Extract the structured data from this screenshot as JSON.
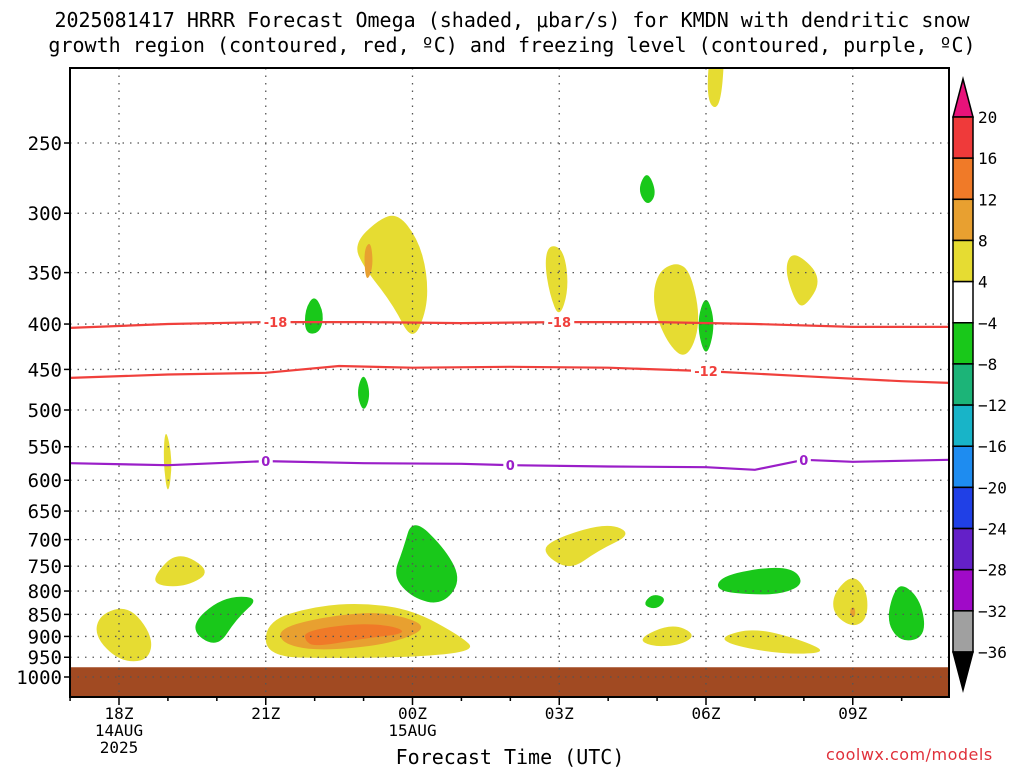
{
  "title_line1": "2025081417 HRRR Forecast Omega (shaded, μbar/s) for KMDN with dendritic snow",
  "title_line2": "growth region (contoured, red, ºC) and freezing level (contoured, purple, ºC)",
  "credit": "coolwx.com/models",
  "colors": {
    "dgz": "#f0403c",
    "freezing": "#9a1ec8",
    "ground": "#a14a22",
    "grid": "#808080"
  },
  "chart_data": {
    "type": "heatmap",
    "title": "2025081417 HRRR Forecast Omega (shaded, μbar/s) for KMDN with dendritic snow growth region (contoured, red, ºC) and freezing level (contoured, purple, ºC)",
    "xlabel": "Forecast Time (UTC)",
    "ylabel": "",
    "x_range_hours": [
      -1,
      17
    ],
    "y_range_hpa": [
      200,
      1030
    ],
    "y_scale": "log-pressure",
    "grid": true,
    "y_ticks": [
      250,
      300,
      350,
      400,
      450,
      500,
      550,
      600,
      650,
      700,
      750,
      800,
      850,
      900,
      950,
      1000
    ],
    "x_ticks": [
      {
        "h": 0,
        "label": "18Z",
        "sub1": "14AUG",
        "sub2": "2025"
      },
      {
        "h": 3,
        "label": "21Z",
        "sub1": "",
        "sub2": ""
      },
      {
        "h": 6,
        "label": "00Z",
        "sub1": "15AUG",
        "sub2": ""
      },
      {
        "h": 9,
        "label": "03Z",
        "sub1": "",
        "sub2": ""
      },
      {
        "h": 12,
        "label": "06Z",
        "sub1": "",
        "sub2": ""
      },
      {
        "h": 15,
        "label": "09Z",
        "sub1": "",
        "sub2": ""
      }
    ],
    "colorbar": {
      "labels": [
        "20",
        "16",
        "12",
        "8",
        "4",
        "−4",
        "−8",
        "−12",
        "−16",
        "−20",
        "−24",
        "−28",
        "−32",
        "−36"
      ],
      "colors": [
        "#e8127a",
        "#ef3a3a",
        "#f07a28",
        "#e8a030",
        "#e6dc32",
        "#ffffff",
        "#19c81a",
        "#1cb478",
        "#18b4c8",
        "#1e8cf0",
        "#2040e6",
        "#6420c8",
        "#a00ac8",
        "#a0a0a0",
        "#000000"
      ]
    },
    "contours": [
      {
        "name": "-18",
        "color": "#f0403c",
        "label_h": [
          3.2,
          9.0
        ],
        "points": [
          [
            -1,
            404
          ],
          [
            1,
            400
          ],
          [
            3,
            398
          ],
          [
            5,
            398
          ],
          [
            7,
            399
          ],
          [
            9,
            398
          ],
          [
            11,
            398
          ],
          [
            13,
            400
          ],
          [
            15,
            403
          ],
          [
            17,
            403
          ]
        ]
      },
      {
        "name": "-12",
        "color": "#f0403c",
        "label_h": [
          12.0
        ],
        "points": [
          [
            -1,
            460
          ],
          [
            1,
            456
          ],
          [
            3,
            454
          ],
          [
            4.5,
            446
          ],
          [
            6,
            448
          ],
          [
            8,
            447
          ],
          [
            10,
            448
          ],
          [
            12,
            452
          ],
          [
            14,
            458
          ],
          [
            16,
            464
          ],
          [
            17,
            466
          ]
        ]
      },
      {
        "name": "0",
        "color": "#9a1ec8",
        "label_h": [
          3.0,
          8.0,
          14.0
        ],
        "points": [
          [
            -1,
            574
          ],
          [
            1,
            577
          ],
          [
            3,
            571
          ],
          [
            5,
            574
          ],
          [
            7,
            575
          ],
          [
            8,
            577
          ],
          [
            10,
            579
          ],
          [
            12,
            580
          ],
          [
            13,
            584
          ],
          [
            14,
            569
          ],
          [
            15,
            572
          ],
          [
            17,
            569
          ]
        ]
      }
    ],
    "omega_regions": [
      {
        "class": "4 to 8",
        "color": "#e6dc32",
        "points": [
          [
            5.3,
            305
          ],
          [
            5.7,
            300
          ],
          [
            6.1,
            320
          ],
          [
            6.3,
            350
          ],
          [
            6.3,
            385
          ],
          [
            6.0,
            420
          ],
          [
            5.6,
            380
          ],
          [
            5.0,
            345
          ],
          [
            4.8,
            325
          ]
        ]
      },
      {
        "class": "8 to 12",
        "color": "#e8a030",
        "points": [
          [
            5.0,
            330
          ],
          [
            5.15,
            322
          ],
          [
            5.2,
            345
          ],
          [
            5.05,
            360
          ]
        ]
      },
      {
        "class": "4 to 8",
        "color": "#e6dc32",
        "points": [
          [
            8.8,
            325
          ],
          [
            9.1,
            330
          ],
          [
            9.2,
            365
          ],
          [
            9.0,
            395
          ],
          [
            8.8,
            370
          ],
          [
            8.7,
            340
          ]
        ]
      },
      {
        "class": "4 to 8",
        "color": "#e6dc32",
        "points": [
          [
            11.4,
            340
          ],
          [
            11.7,
            350
          ],
          [
            11.9,
            400
          ],
          [
            11.6,
            440
          ],
          [
            11.2,
            420
          ],
          [
            10.9,
            380
          ],
          [
            11.0,
            350
          ]
        ]
      },
      {
        "class": "4 to 8",
        "color": "#e6dc32",
        "points": [
          [
            12.1,
            190
          ],
          [
            12.4,
            190
          ],
          [
            12.3,
            230
          ],
          [
            12.0,
            225
          ]
        ]
      },
      {
        "class": "4 to 8",
        "color": "#e6dc32",
        "points": [
          [
            13.8,
            330
          ],
          [
            14.4,
            355
          ],
          [
            14.0,
            385
          ],
          [
            13.8,
            375
          ],
          [
            13.6,
            345
          ]
        ]
      },
      {
        "class": "-4 to -8",
        "color": "#19c81a",
        "points": [
          [
            10.8,
            268
          ],
          [
            11.0,
            285
          ],
          [
            10.8,
            295
          ],
          [
            10.6,
            282
          ]
        ]
      },
      {
        "class": "-4 to -8",
        "color": "#19c81a",
        "points": [
          [
            4.0,
            370
          ],
          [
            4.2,
            390
          ],
          [
            4.1,
            410
          ],
          [
            3.8,
            410
          ],
          [
            3.8,
            385
          ]
        ]
      },
      {
        "class": "-4 to -8",
        "color": "#19c81a",
        "points": [
          [
            12.0,
            368
          ],
          [
            12.2,
            400
          ],
          [
            12.0,
            440
          ],
          [
            11.8,
            400
          ]
        ]
      },
      {
        "class": "-4 to -8",
        "color": "#19c81a",
        "points": [
          [
            5.0,
            452
          ],
          [
            5.15,
            480
          ],
          [
            5.0,
            505
          ],
          [
            4.85,
            478
          ]
        ]
      },
      {
        "class": "4 to 8",
        "color": "#e6dc32",
        "points": [
          [
            0.95,
            520
          ],
          [
            1.1,
            570
          ],
          [
            1.0,
            630
          ],
          [
            0.9,
            570
          ]
        ]
      }
    ],
    "low_level_regions": [
      {
        "class": "4 to 8",
        "color": "#e6dc32",
        "points": [
          [
            0.2,
            830
          ],
          [
            0.7,
            900
          ],
          [
            0.6,
            960
          ],
          [
            0.0,
            960
          ],
          [
            -0.5,
            900
          ],
          [
            -0.4,
            850
          ]
        ]
      },
      {
        "class": "4 to 8",
        "color": "#e6dc32",
        "points": [
          [
            0.7,
            770
          ],
          [
            1.2,
            720
          ],
          [
            1.9,
            760
          ],
          [
            1.4,
            790
          ],
          [
            0.8,
            790
          ]
        ]
      },
      {
        "class": "-4 to -8",
        "color": "#19c81a",
        "points": [
          [
            2.1,
            812
          ],
          [
            2.9,
            812
          ],
          [
            2.4,
            860
          ],
          [
            2.0,
            930
          ],
          [
            1.4,
            880
          ]
        ]
      },
      {
        "class": "4 to 8",
        "color": "#e6dc32",
        "points": [
          [
            3.0,
            865
          ],
          [
            4.0,
            832
          ],
          [
            5.0,
            825
          ],
          [
            6.0,
            840
          ],
          [
            7.0,
            900
          ],
          [
            7.3,
            935
          ],
          [
            6.0,
            950
          ],
          [
            4.5,
            952
          ],
          [
            3.0,
            950
          ]
        ]
      },
      {
        "class": "8 to 12",
        "color": "#e8a030",
        "points": [
          [
            3.3,
            878
          ],
          [
            4.5,
            850
          ],
          [
            5.5,
            845
          ],
          [
            6.4,
            878
          ],
          [
            5.5,
            920
          ],
          [
            4.0,
            935
          ],
          [
            3.3,
            915
          ]
        ]
      },
      {
        "class": "12 to 16",
        "color": "#f07a28",
        "points": [
          [
            3.8,
            888
          ],
          [
            4.8,
            870
          ],
          [
            5.6,
            875
          ],
          [
            5.9,
            893
          ],
          [
            5.0,
            905
          ],
          [
            4.0,
            925
          ],
          [
            3.8,
            910
          ]
        ]
      },
      {
        "class": "-4 to -8",
        "color": "#19c81a",
        "points": [
          [
            6.0,
            660
          ],
          [
            6.7,
            720
          ],
          [
            7.0,
            780
          ],
          [
            6.6,
            830
          ],
          [
            6.0,
            815
          ],
          [
            5.6,
            770
          ],
          [
            5.8,
            720
          ]
        ]
      },
      {
        "class": "4 to 8",
        "color": "#e6dc32",
        "points": [
          [
            9.0,
            695
          ],
          [
            10.0,
            670
          ],
          [
            10.5,
            690
          ],
          [
            9.8,
            720
          ],
          [
            9.2,
            760
          ],
          [
            8.6,
            720
          ]
        ]
      },
      {
        "class": "-4 to -8",
        "color": "#19c81a",
        "points": [
          [
            10.9,
            805
          ],
          [
            11.2,
            815
          ],
          [
            11.0,
            840
          ],
          [
            10.7,
            830
          ]
        ]
      },
      {
        "class": "4 to 8",
        "color": "#e6dc32",
        "points": [
          [
            11.3,
            870
          ],
          [
            11.8,
            895
          ],
          [
            11.5,
            920
          ],
          [
            10.9,
            925
          ],
          [
            10.6,
            905
          ]
        ]
      },
      {
        "class": "-4 to -8",
        "color": "#19c81a",
        "points": [
          [
            13.2,
            752
          ],
          [
            13.8,
            755
          ],
          [
            14.0,
            785
          ],
          [
            13.6,
            805
          ],
          [
            13.0,
            808
          ],
          [
            12.2,
            800
          ],
          [
            12.3,
            770
          ]
        ]
      },
      {
        "class": "4 to 8",
        "color": "#e6dc32",
        "points": [
          [
            13.0,
            880
          ],
          [
            14.0,
            910
          ],
          [
            14.5,
            940
          ],
          [
            13.5,
            942
          ],
          [
            12.5,
            920
          ],
          [
            12.3,
            900
          ]
        ]
      },
      {
        "class": "4 to 8",
        "color": "#e6dc32",
        "points": [
          [
            15.0,
            765
          ],
          [
            15.3,
            800
          ],
          [
            15.3,
            860
          ],
          [
            15.0,
            880
          ],
          [
            14.6,
            850
          ],
          [
            14.6,
            805
          ]
        ]
      },
      {
        "class": "8 to 12",
        "color": "#e8a030",
        "points": [
          [
            14.95,
            835
          ],
          [
            15.05,
            835
          ],
          [
            15.05,
            855
          ],
          [
            14.95,
            855
          ]
        ]
      },
      {
        "class": "-4 to -8",
        "color": "#19c81a",
        "points": [
          [
            16.0,
            782
          ],
          [
            16.4,
            820
          ],
          [
            16.5,
            900
          ],
          [
            16.0,
            915
          ],
          [
            15.7,
            870
          ],
          [
            15.8,
            810
          ]
        ]
      }
    ],
    "ground_top_hpa": 975
  }
}
